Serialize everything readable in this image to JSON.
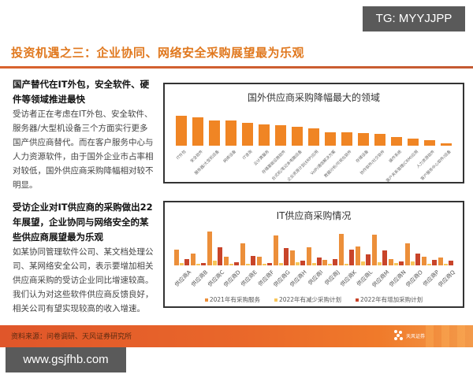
{
  "watermarks": {
    "tg": "TG: MYYJJPP",
    "url": "www.gsjfhb.com"
  },
  "page": {
    "title": "投资机遇之三：企业协同、网络安全采购展望最为乐观"
  },
  "left": {
    "block1": {
      "heading": "国产替代在IT外包，安全软件、硬件等领域推进最快",
      "body": "受访者正在考虑在IT外包、安全软件、服务器/大型机设备三个方面实行更多国产供应商替代。而在客户服务中心与人力资源软件，由于国外企业市占率相对较低，国外供应商采购降幅相对较不明显。"
    },
    "block2": {
      "heading": "受访企业对IT供应商的采购做出22年展望，企业协同与网络安全的某些供应商展望最为乐观",
      "body": "如某协同管理软件公司、某文档处理公司、某网络安全公司，表示要增加相关供应商采购的受访企业同比增速较高。我们认为对这些软件供应商反馈良好，相关公司有望实现较高的收入增速。"
    }
  },
  "footer": {
    "source": "资料来源：问卷调研、天风证券研究所",
    "logo_text": "天风证券"
  },
  "colors": {
    "accent": "#e0781e",
    "bar_top": "#f08524",
    "series_2021": "#ec8f3a",
    "series_dec": "#f7c65a",
    "series_inc": "#c8442a",
    "footer": "#e9672a"
  },
  "chart_data": [
    {
      "type": "bar",
      "title": "国外供应商采购降幅最大的领域",
      "categories": [
        "IT外包",
        "安全软件",
        "服务器/大型机设备",
        "网络设备",
        "IT咨询",
        "云计算服务",
        "存储基础设施软件",
        "台式机/笔记本电脑设备",
        "企业资源计划(ERP)应用",
        "VoIP/通信解决方案",
        "数据分析/可视化软件",
        "存储设备",
        "协作软件/社交软件",
        "操作系统",
        "客户关系管理(CRM)应用",
        "人力资源软件",
        "客户服务中心软件/设备"
      ],
      "values": [
        38,
        36,
        32,
        32,
        29,
        27,
        26,
        24,
        22,
        17,
        17,
        16,
        15,
        11,
        9,
        7,
        3
      ],
      "xlabel": "",
      "ylabel": "",
      "note": "relative bar heights (no axis shown)"
    },
    {
      "type": "bar",
      "title": "IT供应商采购情况",
      "categories": [
        "供应商A",
        "供应商B",
        "供应商C",
        "供应商D",
        "供应商E",
        "供应商F",
        "供应商G",
        "供应商H",
        "供应商I",
        "供应商J",
        "供应商K",
        "供应商L",
        "供应商M",
        "供应商N",
        "供应商O",
        "供应商P",
        "供应商Q"
      ],
      "series": [
        {
          "name": "2021年有采购服务",
          "values": [
            20,
            15,
            43,
            11,
            28,
            11,
            38,
            19,
            23,
            7,
            40,
            24,
            39,
            8,
            28,
            11,
            10
          ]
        },
        {
          "name": "2022年有减少采购计划",
          "values": [
            3,
            2,
            6,
            2,
            2,
            2,
            3,
            4,
            3,
            2,
            2,
            5,
            4,
            3,
            5,
            2,
            2
          ]
        },
        {
          "name": "2022年有增加采购计划",
          "values": [
            8,
            3,
            23,
            4,
            12,
            3,
            22,
            6,
            10,
            8,
            20,
            14,
            19,
            5,
            15,
            7,
            6
          ]
        }
      ],
      "legend_position": "bottom",
      "xlabel": "",
      "ylabel": "",
      "note": "relative bar heights (no axis shown)"
    }
  ]
}
